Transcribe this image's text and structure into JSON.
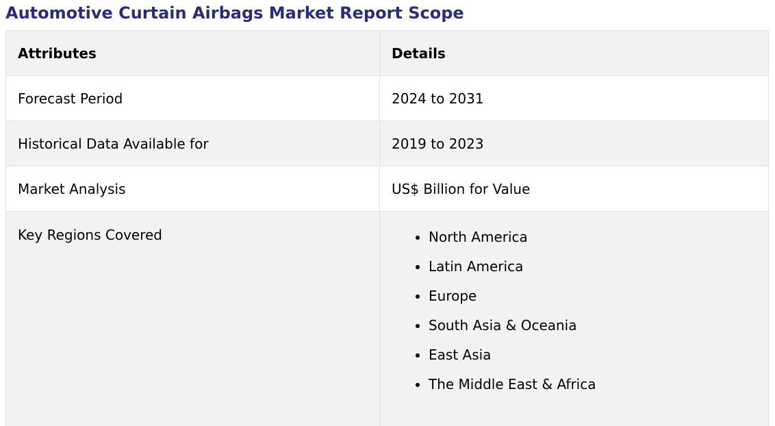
{
  "title": "Automotive Curtain Airbags Market Report Scope",
  "table": {
    "headers": {
      "attributes": "Attributes",
      "details": "Details"
    },
    "rows": [
      {
        "attribute": "Forecast Period",
        "detail": "2024 to 2031"
      },
      {
        "attribute": "Historical Data Available for",
        "detail": "2019 to 2023"
      },
      {
        "attribute": "Market Analysis",
        "detail": "US$ Billion for Value"
      }
    ],
    "regions": {
      "attribute": "Key Regions Covered",
      "items": [
        "North America",
        "Latin America",
        "Europe",
        "South Asia & Oceania",
        "East Asia",
        "The Middle East & Africa"
      ]
    }
  },
  "colors": {
    "title": "#2b2d7c",
    "alt_row": "#f2f2f2",
    "border": "#e3e3e3"
  }
}
